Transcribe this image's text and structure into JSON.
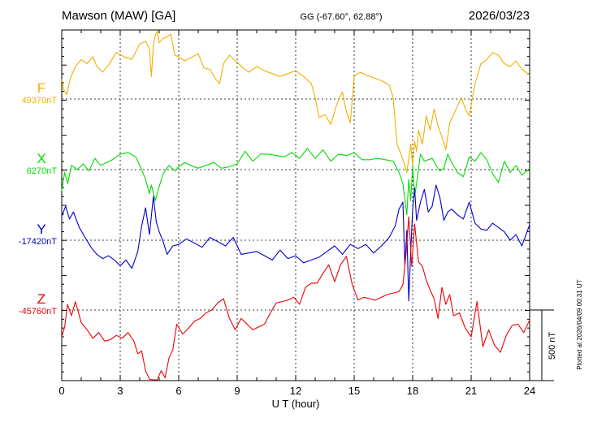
{
  "header": {
    "station": "Mawson (MAW)  [GA]",
    "coords": "GG (-67.60°,  62.88°)",
    "date": "2026/03/23"
  },
  "footer": {
    "plotted": "Plotted at 2026/04/09 00:31 UT"
  },
  "scale_bar": {
    "label": "500 nT",
    "value_nT": 500
  },
  "chart_data": {
    "type": "line",
    "title": "Mawson (MAW)  [GA]",
    "xlabel": "U T (hour)",
    "ylabel": "",
    "xlim": [
      0,
      24
    ],
    "xticks": [
      0,
      3,
      6,
      9,
      12,
      15,
      18,
      21,
      24
    ],
    "xtick_labels": [
      "0",
      "3",
      "6",
      "9",
      "12",
      "15",
      "18",
      "21",
      "24"
    ],
    "minor_tick_step_hours": 1,
    "grid": true,
    "nT_per_baseline_spacing": 500,
    "series": [
      {
        "key": "F",
        "name": "F",
        "baseline_label": "49370nT",
        "baseline_nT": 49370,
        "color": "#f0b000",
        "x": [
          0,
          0.1,
          0.25,
          0.45,
          0.7,
          1.0,
          1.3,
          1.6,
          1.8,
          2.1,
          2.4,
          2.8,
          3.2,
          3.6,
          4.0,
          4.3,
          4.5,
          4.6,
          4.7,
          4.8,
          4.9,
          5.0,
          5.2,
          5.4,
          5.6,
          5.8,
          6.0,
          6.3,
          6.6,
          7.0,
          7.3,
          7.6,
          7.9,
          8.1,
          8.3,
          8.6,
          9.0,
          9.3,
          9.6,
          10.0,
          10.4,
          10.8,
          11.2,
          11.6,
          12.0,
          12.4,
          12.8,
          13.0,
          13.2,
          13.5,
          13.8,
          14.1,
          14.4,
          14.6,
          14.8,
          15.0,
          15.3,
          15.6,
          16.0,
          16.4,
          16.8,
          17.0,
          17.2,
          17.4,
          17.55,
          17.7,
          17.8,
          17.9,
          18.0,
          18.1,
          18.2,
          18.3,
          18.5,
          18.7,
          18.9,
          19.1,
          19.3,
          19.5,
          19.7,
          19.9,
          20.1,
          20.3,
          20.5,
          20.7,
          20.9,
          21.2,
          21.5,
          21.8,
          22.1,
          22.4,
          22.7,
          23.0,
          23.3,
          23.6,
          24.0
        ],
        "y": [
          49510,
          49440,
          49400,
          49520,
          49600,
          49650,
          49620,
          49670,
          49600,
          49560,
          49610,
          49700,
          49670,
          49650,
          49760,
          49780,
          49720,
          49530,
          49760,
          49820,
          49860,
          49770,
          49800,
          49810,
          49830,
          49680,
          49670,
          49640,
          49660,
          49690,
          49590,
          49580,
          49510,
          49480,
          49620,
          49680,
          49630,
          49590,
          49560,
          49600,
          49570,
          49550,
          49530,
          49550,
          49570,
          49530,
          49480,
          49380,
          49240,
          49260,
          49190,
          49330,
          49420,
          49280,
          49200,
          49530,
          49560,
          49540,
          49520,
          49500,
          49470,
          49380,
          49050,
          48980,
          48920,
          48850,
          48950,
          49050,
          48900,
          49070,
          49000,
          49150,
          49050,
          49250,
          49150,
          49300,
          49180,
          49100,
          49010,
          49200,
          49260,
          49320,
          49380,
          49300,
          49250,
          49480,
          49620,
          49650,
          49700,
          49680,
          49620,
          49600,
          49640,
          49580,
          49540
        ]
      },
      {
        "key": "X",
        "name": "X",
        "baseline_label": "6270nT",
        "baseline_nT": 6270,
        "color": "#00dd00",
        "x": [
          0,
          0.15,
          0.3,
          0.5,
          0.8,
          1.1,
          1.4,
          1.7,
          2.0,
          2.3,
          2.6,
          3.0,
          3.4,
          3.8,
          4.1,
          4.3,
          4.5,
          4.6,
          4.8,
          5.0,
          5.2,
          5.5,
          5.8,
          6.0,
          6.3,
          6.6,
          7.0,
          7.4,
          7.8,
          8.2,
          8.6,
          9.0,
          9.4,
          9.8,
          10.2,
          10.6,
          11.0,
          11.4,
          11.8,
          12.2,
          12.6,
          13.0,
          13.4,
          13.8,
          14.2,
          14.6,
          15.0,
          15.4,
          15.8,
          16.2,
          16.6,
          17.0,
          17.3,
          17.5,
          17.7,
          17.8,
          17.9,
          18.0,
          18.1,
          18.25,
          18.4,
          18.6,
          18.8,
          19.0,
          19.2,
          19.4,
          19.6,
          19.8,
          20.0,
          20.3,
          20.6,
          20.9,
          21.2,
          21.5,
          21.8,
          22.1,
          22.4,
          22.7,
          23.0,
          23.3,
          23.6,
          24.0
        ],
        "y": [
          6120,
          6250,
          6170,
          6300,
          6270,
          6310,
          6260,
          6350,
          6300,
          6320,
          6340,
          6380,
          6390,
          6360,
          6270,
          6200,
          6100,
          6160,
          6050,
          6150,
          6240,
          6300,
          6260,
          6290,
          6320,
          6300,
          6280,
          6300,
          6320,
          6280,
          6290,
          6310,
          6400,
          6330,
          6380,
          6380,
          6370,
          6360,
          6390,
          6350,
          6420,
          6350,
          6410,
          6330,
          6380,
          6370,
          6390,
          6340,
          6340,
          6350,
          6340,
          6330,
          6250,
          6170,
          5950,
          6200,
          6050,
          6300,
          6080,
          6220,
          6380,
          6330,
          6340,
          6350,
          6300,
          6260,
          6280,
          6380,
          6320,
          6250,
          6220,
          6360,
          6330,
          6390,
          6340,
          6240,
          6180,
          6330,
          6250,
          6300,
          6230,
          6280
        ]
      },
      {
        "key": "Y",
        "name": "Y",
        "baseline_label": "-17420nT",
        "baseline_nT": -17420,
        "color": "#0000cc",
        "x": [
          0,
          0.2,
          0.4,
          0.6,
          0.9,
          1.2,
          1.5,
          1.8,
          2.1,
          2.4,
          2.7,
          3.0,
          3.3,
          3.6,
          3.9,
          4.1,
          4.3,
          4.5,
          4.7,
          4.85,
          5.0,
          5.2,
          5.4,
          5.7,
          6.0,
          6.4,
          6.8,
          7.2,
          7.6,
          8.0,
          8.4,
          8.8,
          9.2,
          9.6,
          10.0,
          10.4,
          10.8,
          11.2,
          11.6,
          12.0,
          12.4,
          12.8,
          13.2,
          13.6,
          14.0,
          14.4,
          14.8,
          15.2,
          15.6,
          16.0,
          16.4,
          16.8,
          17.1,
          17.3,
          17.5,
          17.6,
          17.7,
          17.8,
          17.9,
          18.0,
          18.1,
          18.2,
          18.4,
          18.6,
          18.8,
          19.0,
          19.2,
          19.4,
          19.6,
          19.8,
          20.0,
          20.3,
          20.6,
          20.9,
          21.2,
          21.5,
          21.8,
          22.1,
          22.4,
          22.7,
          23.0,
          23.3,
          23.6,
          24.0
        ],
        "y": [
          -17250,
          -17180,
          -17270,
          -17220,
          -17330,
          -17400,
          -17470,
          -17520,
          -17550,
          -17530,
          -17560,
          -17600,
          -17560,
          -17620,
          -17500,
          -17320,
          -17190,
          -17380,
          -17110,
          -17290,
          -17360,
          -17430,
          -17520,
          -17460,
          -17450,
          -17410,
          -17440,
          -17470,
          -17400,
          -17430,
          -17460,
          -17400,
          -17520,
          -17510,
          -17500,
          -17530,
          -17560,
          -17490,
          -17550,
          -17530,
          -17580,
          -17560,
          -17540,
          -17500,
          -17460,
          -17520,
          -17450,
          -17480,
          -17450,
          -17510,
          -17460,
          -17400,
          -17320,
          -17200,
          -17150,
          -17600,
          -17350,
          -17850,
          -17500,
          -17200,
          -17050,
          -17280,
          -17150,
          -17060,
          -17220,
          -17180,
          -17030,
          -17120,
          -17280,
          -17220,
          -17200,
          -17240,
          -17270,
          -17150,
          -17300,
          -17340,
          -17350,
          -17300,
          -17330,
          -17360,
          -17420,
          -17380,
          -17460,
          -17310
        ]
      },
      {
        "key": "Z",
        "name": "Z",
        "baseline_label": "-45760nT",
        "baseline_nT": -45760,
        "color": "#ee0000",
        "x": [
          0,
          0.15,
          0.3,
          0.5,
          0.7,
          1.0,
          1.3,
          1.6,
          1.9,
          2.2,
          2.5,
          2.8,
          3.1,
          3.4,
          3.7,
          3.9,
          4.1,
          4.3,
          4.5,
          4.7,
          4.9,
          5.1,
          5.3,
          5.5,
          5.7,
          5.9,
          6.2,
          6.5,
          6.8,
          7.1,
          7.4,
          7.7,
          8.0,
          8.3,
          8.6,
          8.9,
          9.2,
          9.5,
          9.8,
          10.1,
          10.4,
          10.7,
          11.0,
          11.3,
          11.6,
          11.9,
          12.2,
          12.5,
          12.8,
          13.1,
          13.4,
          13.7,
          14.0,
          14.3,
          14.6,
          14.9,
          15.2,
          15.5,
          15.8,
          16.1,
          16.4,
          16.7,
          17.0,
          17.3,
          17.5,
          17.65,
          17.8,
          17.95,
          18.1,
          18.3,
          18.5,
          18.7,
          18.9,
          19.1,
          19.3,
          19.5,
          19.7,
          19.9,
          20.1,
          20.4,
          20.7,
          21.0,
          21.3,
          21.6,
          21.9,
          22.2,
          22.5,
          22.8,
          23.1,
          23.4,
          23.7,
          24.0
        ],
        "y": [
          -45950,
          -45880,
          -45720,
          -45800,
          -45700,
          -45850,
          -45900,
          -45960,
          -45920,
          -45980,
          -45970,
          -45940,
          -45960,
          -45920,
          -45980,
          -46070,
          -46050,
          -46190,
          -46250,
          -46370,
          -46330,
          -46190,
          -46240,
          -46100,
          -46040,
          -45860,
          -45930,
          -45890,
          -45840,
          -45820,
          -45780,
          -45760,
          -45710,
          -45680,
          -45820,
          -45900,
          -45820,
          -45860,
          -45900,
          -45880,
          -45860,
          -45780,
          -45710,
          -45700,
          -45690,
          -45670,
          -45720,
          -45600,
          -45570,
          -45570,
          -45500,
          -45440,
          -45560,
          -45440,
          -45380,
          -45580,
          -45690,
          -45670,
          -45680,
          -45690,
          -45670,
          -45650,
          -45640,
          -45630,
          -45580,
          -45380,
          -45100,
          -45450,
          -45150,
          -45420,
          -45450,
          -45550,
          -45620,
          -45680,
          -45820,
          -45600,
          -45720,
          -45650,
          -45800,
          -45780,
          -45890,
          -45950,
          -45700,
          -46020,
          -45900,
          -46010,
          -46060,
          -45940,
          -45870,
          -45860,
          -45920,
          -45830
        ]
      }
    ]
  }
}
